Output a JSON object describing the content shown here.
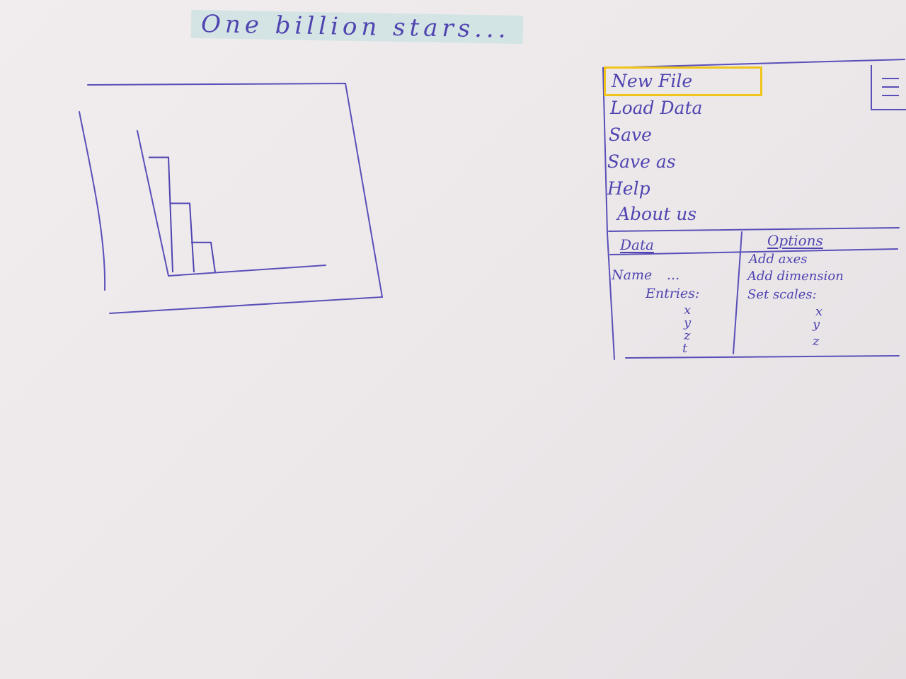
{
  "app": {
    "title": "One billion stars..."
  },
  "menu": {
    "items": [
      {
        "label": "New File",
        "selected": true
      },
      {
        "label": "Load Data"
      },
      {
        "label": "Save"
      },
      {
        "label": "Save as"
      },
      {
        "label": "Help"
      },
      {
        "label": "About us"
      }
    ]
  },
  "panel": {
    "data": {
      "header": "Data",
      "name_label": "Name",
      "name_value": "...",
      "entries_label": "Entries:",
      "axes": [
        "x",
        "y",
        "z",
        "t"
      ]
    },
    "options": {
      "header": "Options",
      "items": [
        "Add axes",
        "Add dimension",
        "Set scales:"
      ],
      "axes": [
        "x",
        "y",
        "z"
      ]
    }
  },
  "chart_data": {
    "type": "bar",
    "categories": [
      "",
      "",
      ""
    ],
    "values": [
      5,
      3,
      1.3
    ],
    "ylim": [
      0,
      6
    ],
    "grid": false
  },
  "colors": {
    "ink": "#4f44b0",
    "highlight": "#f0c419",
    "title_highlight": "#bedede"
  },
  "icons": {
    "menu": "hamburger-icon"
  }
}
